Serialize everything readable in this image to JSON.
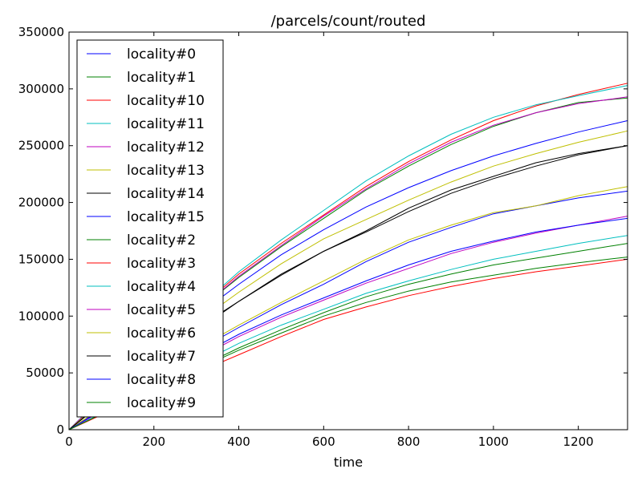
{
  "chart_data": {
    "type": "line",
    "title": "/parcels/count/routed",
    "xlabel": "time",
    "ylabel": "",
    "xlim": [
      0,
      1316
    ],
    "ylim": [
      0,
      350000
    ],
    "xticks": [
      0,
      200,
      400,
      600,
      800,
      1000,
      1200
    ],
    "xtick_labels": [
      "0",
      "200",
      "400",
      "600",
      "800",
      "1000",
      "1200"
    ],
    "yticks": [
      0,
      50000,
      100000,
      150000,
      200000,
      250000,
      300000,
      350000
    ],
    "ytick_labels": [
      "0",
      "50000",
      "100000",
      "150000",
      "200000",
      "250000",
      "300000",
      "350000"
    ],
    "grid": false,
    "legend_position": "upper-left",
    "x": [
      0,
      100,
      200,
      300,
      400,
      500,
      600,
      700,
      800,
      900,
      1000,
      1100,
      1200,
      1316
    ],
    "series": [
      {
        "name": "locality#0",
        "color": "#0000ff",
        "values": [
          0,
          35000,
          70000,
          100000,
          128000,
          154000,
          176000,
          196000,
          213000,
          228000,
          241000,
          252000,
          262000,
          272000
        ]
      },
      {
        "name": "locality#1",
        "color": "#008000",
        "values": [
          0,
          36000,
          73000,
          104000,
          134000,
          161000,
          186000,
          211000,
          232000,
          251000,
          267000,
          279000,
          288000,
          292000
        ]
      },
      {
        "name": "locality#10",
        "color": "#ff0000",
        "values": [
          0,
          36000,
          73000,
          105000,
          137000,
          164000,
          189000,
          214000,
          236000,
          255000,
          272000,
          285000,
          295000,
          305000
        ]
      },
      {
        "name": "locality#11",
        "color": "#00bfbf",
        "values": [
          0,
          37000,
          74000,
          106000,
          139000,
          167000,
          193000,
          219000,
          241000,
          260000,
          275000,
          286000,
          294000,
          303000
        ]
      },
      {
        "name": "locality#12",
        "color": "#bf00bf",
        "values": [
          0,
          36000,
          73000,
          104000,
          135000,
          162000,
          188000,
          212000,
          234000,
          253000,
          268000,
          279000,
          287000,
          293000
        ]
      },
      {
        "name": "locality#13",
        "color": "#bfbf00",
        "values": [
          0,
          33000,
          66000,
          94000,
          121000,
          146000,
          168000,
          185000,
          202000,
          218000,
          232000,
          243000,
          253000,
          263000
        ]
      },
      {
        "name": "locality#14",
        "color": "#000000",
        "values": [
          0,
          31000,
          62000,
          89000,
          113000,
          136000,
          157000,
          174000,
          192000,
          208000,
          221000,
          232000,
          242000,
          250000
        ]
      },
      {
        "name": "locality#15",
        "color": "#0000ff",
        "values": [
          0,
          24000,
          48000,
          69000,
          90000,
          110000,
          128000,
          148000,
          165000,
          178000,
          190000,
          197000,
          204000,
          210000
        ]
      },
      {
        "name": "locality#2",
        "color": "#008000",
        "values": [
          0,
          18000,
          36000,
          54000,
          72000,
          88000,
          103000,
          117000,
          128000,
          137000,
          145000,
          151000,
          157000,
          164000
        ]
      },
      {
        "name": "locality#3",
        "color": "#ff0000",
        "values": [
          0,
          17000,
          34000,
          50000,
          66000,
          82000,
          97000,
          108000,
          118000,
          126000,
          133000,
          139000,
          144000,
          150000
        ]
      },
      {
        "name": "locality#4",
        "color": "#00bfbf",
        "values": [
          0,
          19000,
          38000,
          57000,
          76000,
          92000,
          106000,
          120000,
          131000,
          141000,
          150000,
          157000,
          164000,
          171000
        ]
      },
      {
        "name": "locality#5",
        "color": "#bf00bf",
        "values": [
          0,
          21000,
          42000,
          62000,
          82000,
          99000,
          114000,
          129000,
          142000,
          155000,
          165000,
          173000,
          180000,
          188000
        ]
      },
      {
        "name": "locality#6",
        "color": "#bfbf00",
        "values": [
          0,
          25000,
          50000,
          71000,
          92000,
          112000,
          131000,
          150000,
          167000,
          180000,
          191000,
          197000,
          206000,
          214000
        ]
      },
      {
        "name": "locality#7",
        "color": "#000000",
        "values": [
          0,
          30000,
          60000,
          87000,
          113000,
          137000,
          157000,
          175000,
          195000,
          211000,
          223000,
          235000,
          243000,
          250000
        ]
      },
      {
        "name": "locality#8",
        "color": "#0000ff",
        "values": [
          0,
          22000,
          44000,
          64000,
          84000,
          101000,
          116000,
          131000,
          145000,
          157000,
          166000,
          174000,
          180000,
          186000
        ]
      },
      {
        "name": "locality#9",
        "color": "#008000",
        "values": [
          0,
          18000,
          36000,
          53000,
          70000,
          85000,
          100000,
          112000,
          122000,
          130000,
          136000,
          142000,
          147000,
          152000
        ]
      }
    ]
  }
}
